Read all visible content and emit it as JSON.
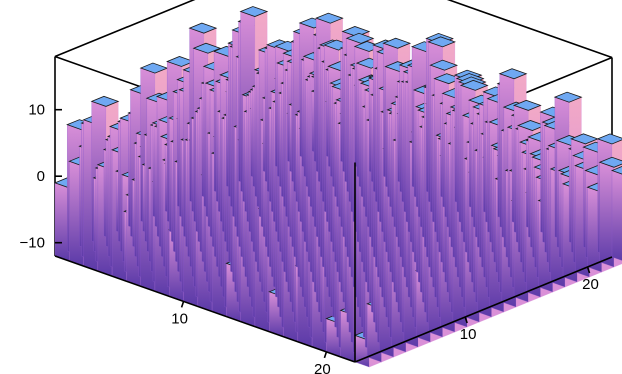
{
  "chart_data": {
    "type": "bar3d",
    "title": "",
    "xlabel": "",
    "ylabel": "",
    "zlabel": "",
    "x_range": [
      1,
      22
    ],
    "y_range": [
      1,
      22
    ],
    "z_range": [
      -12,
      18
    ],
    "x_ticks": [
      {
        "value": 10,
        "label": "10"
      },
      {
        "value": 20,
        "label": "20"
      }
    ],
    "y_ticks": [
      {
        "value": 10,
        "label": "10"
      },
      {
        "value": 20,
        "label": "20"
      }
    ],
    "z_ticks": [
      {
        "value": 10,
        "label": "10"
      },
      {
        "value": 0,
        "label": "0"
      },
      {
        "value": -10,
        "label": "−10"
      }
    ],
    "baseline": -12,
    "grid": false,
    "colors": {
      "top_face": "#6fa8f2",
      "top_edge": "#1a1a1a",
      "side_light": "#f2a9c6",
      "side_mid": "#d98fd8",
      "side_dark": "#8a57c9",
      "side_deep": "#5b3aa8",
      "box": "#000000"
    },
    "heights": [
      [
        -1,
        7,
        3,
        9,
        1,
        -3,
        5,
        11,
        2,
        -2,
        7,
        14,
        5,
        9,
        4,
        12,
        1,
        -1,
        6,
        3,
        8,
        -3
      ],
      [
        3,
        8,
        -1,
        4,
        6,
        10,
        -2,
        3,
        12,
        7,
        2,
        9,
        6,
        11,
        15,
        3,
        8,
        5,
        -2,
        4,
        7,
        1
      ],
      [
        10,
        2,
        6,
        8,
        -2,
        4,
        9,
        5,
        1,
        14,
        8,
        3,
        12,
        4,
        7,
        10,
        2,
        9,
        6,
        11,
        3,
        5
      ],
      [
        4,
        9,
        1,
        5,
        11,
        7,
        3,
        13,
        6,
        2,
        10,
        16,
        3,
        8,
        2,
        5,
        12,
        4,
        8,
        2,
        9,
        6
      ],
      [
        7,
        -3,
        8,
        2,
        6,
        12,
        4,
        8,
        10,
        5,
        3,
        7,
        13,
        6,
        11,
        1,
        6,
        10,
        3,
        7,
        5,
        2
      ],
      [
        1,
        6,
        10,
        4,
        3,
        8,
        11,
        2,
        7,
        15,
        9,
        4,
        6,
        10,
        3,
        8,
        9,
        2,
        11,
        4,
        1,
        8
      ],
      [
        9,
        3,
        5,
        11,
        7,
        1,
        6,
        12,
        4,
        8,
        2,
        11,
        5,
        2,
        9,
        13,
        4,
        7,
        5,
        10,
        6,
        3
      ],
      [
        5,
        10,
        2,
        7,
        9,
        4,
        13,
        3,
        9,
        6,
        12,
        1,
        8,
        14,
        6,
        2,
        10,
        3,
        8,
        1,
        7,
        9
      ],
      [
        -2,
        6,
        9,
        3,
        5,
        11,
        2,
        8,
        14,
        3,
        7,
        10,
        4,
        9,
        5,
        11,
        7,
        12,
        2,
        6,
        4,
        11
      ],
      [
        8,
        1,
        4,
        12,
        2,
        6,
        9,
        5,
        3,
        11,
        6,
        8,
        13,
        3,
        10,
        4,
        8,
        5,
        9,
        3,
        12,
        2
      ],
      [
        3,
        7,
        11,
        5,
        8,
        -1,
        4,
        10,
        7,
        2,
        13,
        5,
        2,
        7,
        12,
        6,
        1,
        9,
        4,
        10,
        5,
        7
      ],
      [
        6,
        12,
        3,
        9,
        1,
        7,
        12,
        3,
        8,
        12,
        4,
        9,
        6,
        11,
        2,
        9,
        13,
        3,
        7,
        2,
        8,
        4
      ],
      [
        -4,
        4,
        8,
        2,
        10,
        5,
        3,
        9,
        1,
        6,
        10,
        3,
        12,
        5,
        8,
        3,
        6,
        11,
        5,
        9,
        2,
        6
      ],
      [
        2,
        9,
        5,
        10,
        6,
        13,
        7,
        4,
        11,
        5,
        8,
        14,
        4,
        9,
        6,
        12,
        4,
        2,
        10,
        6,
        3,
        8
      ],
      [
        7,
        3,
        12,
        6,
        4,
        2,
        10,
        6,
        3,
        13,
        2,
        7,
        10,
        3,
        11,
        5,
        9,
        7,
        1,
        8,
        11,
        4
      ],
      [
        -6,
        8,
        2,
        11,
        9,
        6,
        1,
        12,
        8,
        4,
        9,
        5,
        3,
        8,
        4,
        10,
        2,
        8,
        6,
        4,
        7,
        1
      ],
      [
        4,
        -2,
        7,
        3,
        12,
        8,
        5,
        2,
        10,
        7,
        3,
        11,
        7,
        2,
        9,
        6,
        11,
        4,
        9,
        5,
        3,
        6
      ],
      [
        9,
        5,
        1,
        8,
        3,
        11,
        9,
        6,
        4,
        12,
        6,
        2,
        9,
        5,
        3,
        8,
        5,
        1,
        7,
        2,
        6,
        9
      ],
      [
        1,
        10,
        6,
        4,
        7,
        2,
        5,
        9,
        7,
        1,
        10,
        6,
        4,
        11,
        6,
        2,
        9,
        6,
        3,
        7,
        4,
        2
      ],
      [
        -7,
        3,
        8,
        11,
        2,
        5,
        8,
        1,
        5,
        8,
        2,
        9,
        5,
        3,
        7,
        4,
        6,
        3,
        5,
        1,
        5,
        3
      ],
      [
        -5,
        6,
        2,
        5,
        9,
        3,
        1,
        7,
        2,
        4,
        6,
        3,
        8,
        6,
        1,
        5,
        3,
        7,
        2,
        4,
        1,
        5
      ],
      [
        -8,
        -4,
        4,
        1,
        5,
        -2,
        4,
        3,
        6,
        1,
        4,
        7,
        2,
        4,
        3,
        1,
        5,
        2,
        4,
        0,
        3,
        1
      ]
    ]
  }
}
